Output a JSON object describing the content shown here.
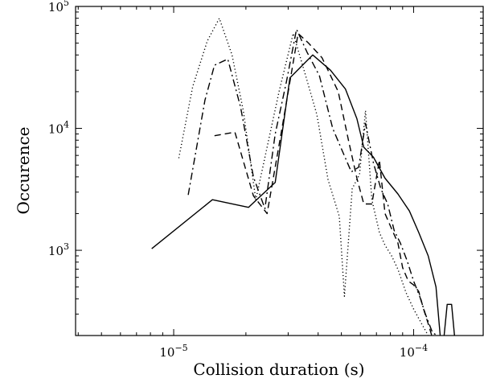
{
  "chart_data": {
    "type": "line",
    "title": "",
    "xlabel": "Collision duration (s)",
    "ylabel": "Occurence",
    "x_scale": "log",
    "y_scale": "log",
    "xlim": [
      3.9e-06,
      0.000195
    ],
    "ylim": [
      200,
      100000
    ],
    "x_ticks": [
      {
        "value": 1e-05,
        "base": "10",
        "exp": "−5"
      },
      {
        "value": 0.0001,
        "base": "10",
        "exp": "−4"
      }
    ],
    "y_ticks": [
      {
        "value": 1000,
        "base": "10",
        "exp": "3"
      },
      {
        "value": 10000,
        "base": "10",
        "exp": "4"
      },
      {
        "value": 100000,
        "base": "10",
        "exp": "5"
      }
    ],
    "grid": false,
    "legend": "none",
    "series": [
      {
        "style": "solid",
        "points": [
          [
            8.1e-06,
            1030
          ],
          [
            1.45e-05,
            2600
          ],
          [
            2.05e-05,
            2250
          ],
          [
            2.65e-05,
            3600
          ],
          [
            3.05e-05,
            26000
          ],
          [
            3.8e-05,
            40000
          ],
          [
            4.5e-05,
            30000
          ],
          [
            5.2e-05,
            21000
          ],
          [
            5.8e-05,
            12000
          ],
          [
            6.2e-05,
            7000
          ],
          [
            6.8e-05,
            5800
          ],
          [
            7.6e-05,
            3900
          ],
          [
            8.6e-05,
            2900
          ],
          [
            9.6e-05,
            2100
          ],
          [
            0.000105,
            1400
          ],
          [
            0.000115,
            900
          ],
          [
            0.000124,
            500
          ],
          [
            0.000129,
            200
          ]
        ]
      },
      {
        "style": "dashed",
        "points": [
          [
            1.48e-05,
            8700
          ],
          [
            1.8e-05,
            9300
          ],
          [
            2.15e-05,
            2800
          ],
          [
            2.45e-05,
            2000
          ],
          [
            2.85e-05,
            11000
          ],
          [
            3.3e-05,
            60000
          ],
          [
            3.65e-05,
            50000
          ],
          [
            4.15e-05,
            38000
          ],
          [
            4.85e-05,
            20000
          ],
          [
            5.35e-05,
            8000
          ],
          [
            5.8e-05,
            3900
          ],
          [
            6.2e-05,
            2400
          ],
          [
            6.7e-05,
            2400
          ],
          [
            7.2e-05,
            5500
          ],
          [
            7.6e-05,
            2000
          ],
          [
            8.1e-05,
            1500
          ],
          [
            8.6e-05,
            1150
          ],
          [
            9e-05,
            720
          ],
          [
            9.5e-05,
            560
          ],
          [
            0.0001,
            520
          ],
          [
            0.000105,
            460
          ],
          [
            0.00011,
            330
          ],
          [
            0.000115,
            250
          ],
          [
            0.000119,
            200
          ]
        ]
      },
      {
        "style": "dashdot",
        "points": [
          [
            1.15e-05,
            2850
          ],
          [
            1.35e-05,
            17000
          ],
          [
            1.48e-05,
            33000
          ],
          [
            1.68e-05,
            37000
          ],
          [
            1.9e-05,
            15000
          ],
          [
            2.15e-05,
            4000
          ],
          [
            2.4e-05,
            2200
          ],
          [
            2.65e-05,
            9000
          ],
          [
            2.95e-05,
            24000
          ],
          [
            3.25e-05,
            65000
          ],
          [
            3.6e-05,
            42000
          ],
          [
            4.05e-05,
            27000
          ],
          [
            4.6e-05,
            10000
          ],
          [
            5.05e-05,
            6500
          ],
          [
            5.5e-05,
            4400
          ],
          [
            5.9e-05,
            4800
          ],
          [
            6.3e-05,
            11000
          ],
          [
            6.8e-05,
            5200
          ],
          [
            7.3e-05,
            3200
          ],
          [
            7.8e-05,
            2400
          ],
          [
            8.3e-05,
            1450
          ],
          [
            8.8e-05,
            1150
          ],
          [
            9.4e-05,
            820
          ],
          [
            0.0001,
            560
          ],
          [
            0.000106,
            420
          ],
          [
            0.000112,
            300
          ],
          [
            0.00012,
            210
          ],
          [
            0.000126,
            200
          ]
        ]
      },
      {
        "style": "dotted",
        "points": [
          [
            1.05e-05,
            5700
          ],
          [
            1.2e-05,
            22000
          ],
          [
            1.38e-05,
            52000
          ],
          [
            1.55e-05,
            80000
          ],
          [
            1.75e-05,
            40000
          ],
          [
            1.95e-05,
            14000
          ],
          [
            2.2e-05,
            2600
          ],
          [
            2.45e-05,
            7000
          ],
          [
            2.75e-05,
            20000
          ],
          [
            3.15e-05,
            60000
          ],
          [
            3.55e-05,
            27000
          ],
          [
            3.95e-05,
            13000
          ],
          [
            4.4e-05,
            3800
          ],
          [
            4.9e-05,
            1900
          ],
          [
            5.15e-05,
            420
          ],
          [
            5.55e-05,
            3200
          ],
          [
            5.95e-05,
            4200
          ],
          [
            6.3e-05,
            14000
          ],
          [
            6.7e-05,
            2600
          ],
          [
            7.2e-05,
            1400
          ],
          [
            7.6e-05,
            1100
          ],
          [
            8.1e-05,
            900
          ],
          [
            8.6e-05,
            700
          ],
          [
            9.3e-05,
            450
          ],
          [
            0.0001,
            330
          ],
          [
            0.000108,
            250
          ],
          [
            0.000115,
            200
          ]
        ]
      },
      {
        "style": "solid",
        "points": [
          [
            0.000134,
            200
          ],
          [
            0.000138,
            360
          ],
          [
            0.000144,
            360
          ],
          [
            0.000148,
            200
          ]
        ]
      }
    ]
  }
}
